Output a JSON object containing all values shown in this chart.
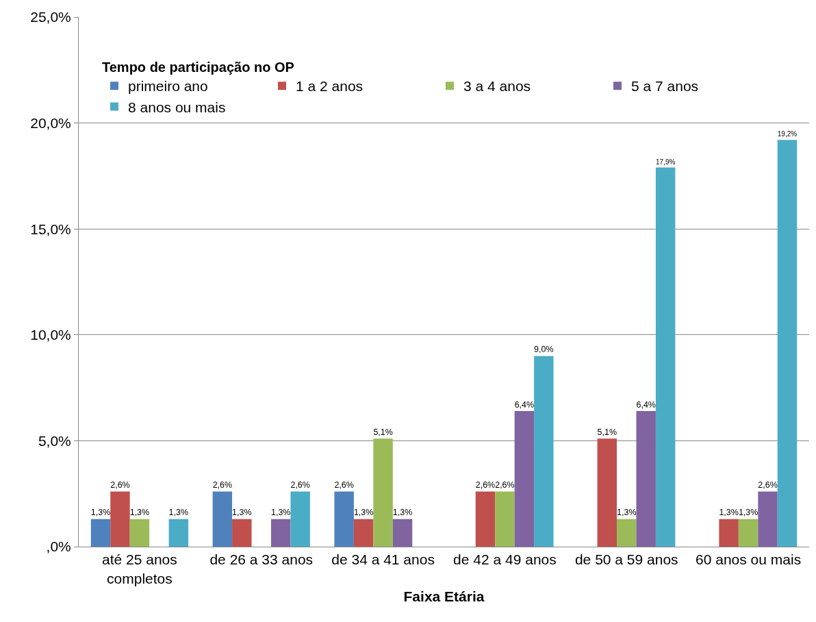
{
  "chart_data": {
    "type": "bar",
    "xlabel": "Faixa Etária",
    "legend_title": "Tempo de participação no OP",
    "legend": "top left",
    "grid": "y",
    "categories": [
      "até 25 anos completos",
      "de 26 a 33 anos",
      "de 34 a 41 anos",
      "de 42 a 49 anos",
      "de 50 a 59 anos",
      "60 anos ou mais"
    ],
    "ylim": [
      0,
      25
    ],
    "yticks": [
      {
        "value": 0,
        "label": ",0%"
      },
      {
        "value": 5,
        "label": "5,0%"
      },
      {
        "value": 10,
        "label": "10,0%"
      },
      {
        "value": 15,
        "label": "15,0%"
      },
      {
        "value": 20,
        "label": "20,0%"
      },
      {
        "value": 25,
        "label": "25,0%"
      }
    ],
    "series": [
      {
        "name": "primeiro ano",
        "color": "#4f81bd",
        "values": [
          1.3,
          2.6,
          2.6,
          null,
          null,
          null
        ],
        "value_labels": [
          "1,3%",
          "2,6%",
          "2,6%",
          null,
          null,
          null
        ]
      },
      {
        "name": "1 a 2 anos",
        "color": "#c0504d",
        "values": [
          2.6,
          1.3,
          1.3,
          2.6,
          5.1,
          1.3
        ],
        "value_labels": [
          "2,6%",
          "1,3%",
          "1,3%",
          "2,6%",
          "5,1%",
          "1,3%"
        ]
      },
      {
        "name": "3 a 4 anos",
        "color": "#9bbb59",
        "values": [
          1.3,
          null,
          5.1,
          2.6,
          1.3,
          1.3
        ],
        "value_labels": [
          "1,3%",
          null,
          "5,1%",
          "2,6%",
          "1,3%",
          "1,3%"
        ]
      },
      {
        "name": "5 a 7 anos",
        "color": "#8064a2",
        "values": [
          null,
          1.3,
          1.3,
          6.4,
          6.4,
          2.6
        ],
        "value_labels": [
          null,
          "1,3%",
          "1,3%",
          "6,4%",
          "6,4%",
          "2,6%"
        ]
      },
      {
        "name": "8 anos ou mais",
        "color": "#4bacc6",
        "values": [
          1.3,
          2.6,
          null,
          9.0,
          17.9,
          19.2
        ],
        "value_labels": [
          "1,3%",
          "2,6%",
          null,
          "9,0%",
          "17,9%",
          "19,2%"
        ]
      }
    ]
  }
}
